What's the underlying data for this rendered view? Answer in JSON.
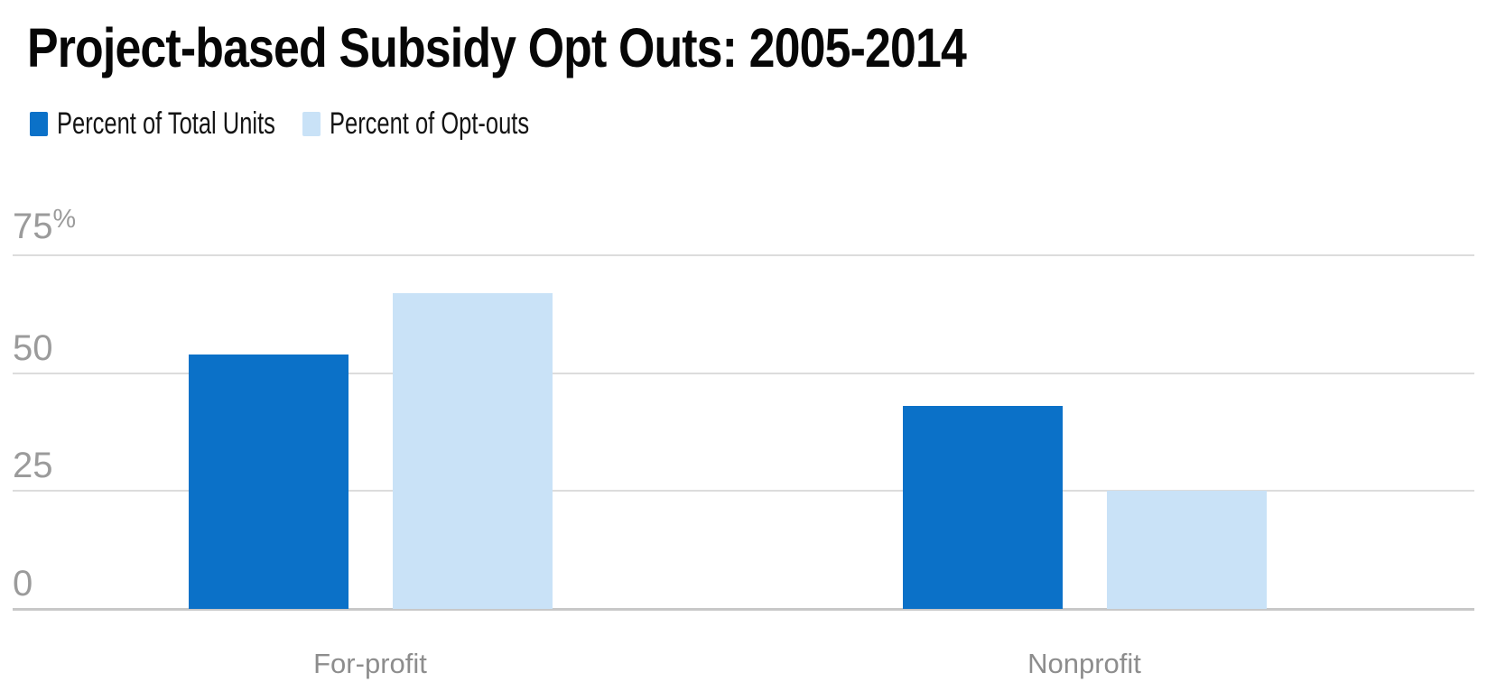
{
  "title": "Project-based Subsidy Opt Outs: 2005-2014",
  "chart_data": {
    "type": "bar",
    "title": "Project-based Subsidy Opt Outs: 2005-2014",
    "categories": [
      "For-profit",
      "Nonprofit"
    ],
    "series": [
      {
        "name": "Percent of Total Units",
        "color": "#0b71c8",
        "values": [
          54,
          43
        ]
      },
      {
        "name": "Percent of Opt-outs",
        "color": "#c9e2f7",
        "values": [
          67,
          25
        ]
      }
    ],
    "unit": "percent",
    "y_ticks": [
      {
        "value": 75,
        "label": "75%"
      },
      {
        "value": 50,
        "label": "50"
      },
      {
        "value": 25,
        "label": "25"
      },
      {
        "value": 0,
        "label": "0"
      }
    ],
    "ylim": [
      0,
      78
    ],
    "grid": true,
    "legend_position": "top-left"
  },
  "colors": {
    "series_dark_blue": "#0b71c8",
    "series_light_blue": "#c9e2f7",
    "gridline": "#dcdcdc",
    "axis_line": "#c8c8c8",
    "axis_text": "#9b9b9b",
    "category_text": "#8d8d8d",
    "title_text": "#070707",
    "background": "#ffffff"
  }
}
